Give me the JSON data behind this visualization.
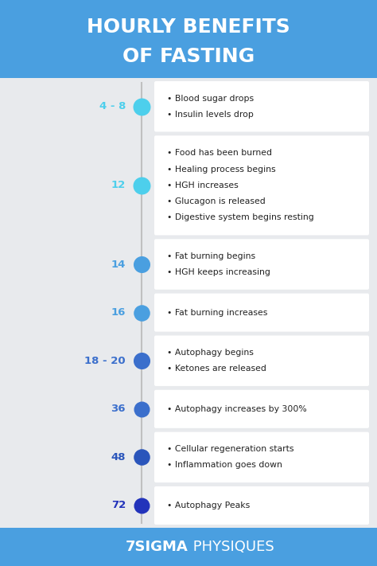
{
  "title_line1": "HOURLY BENEFITS",
  "title_line2": "OF FASTING",
  "title_bg": "#4A9FE0",
  "title_text_color": "#FFFFFF",
  "bg_color": "#E8EAED",
  "footer_text_bold": "7SIGMA",
  "footer_text_normal": " PHYSIQUES",
  "footer_bg": "#4A9FE0",
  "footer_text_color": "#FFFFFF",
  "line_color": "#C0C0C0",
  "card_color": "#FFFFFF",
  "stages": [
    {
      "label": "4 - 8",
      "label_color": "#4DCFEC",
      "dot_color": "#4DCFEC",
      "points": [
        "Blood sugar drops",
        "Insulin levels drop"
      ]
    },
    {
      "label": "12",
      "label_color": "#4DCFEC",
      "dot_color": "#4DCFEC",
      "points": [
        "Food has been burned",
        "Healing process begins",
        "HGH increases",
        "Glucagon is released",
        "Digestive system begins resting"
      ]
    },
    {
      "label": "14",
      "label_color": "#4A9FE0",
      "dot_color": "#4A9FE0",
      "points": [
        "Fat burning begins",
        "HGH keeps increasing"
      ]
    },
    {
      "label": "16",
      "label_color": "#4A9FE0",
      "dot_color": "#4A9FE0",
      "points": [
        "Fat burning increases"
      ]
    },
    {
      "label": "18 - 20",
      "label_color": "#3B6FCC",
      "dot_color": "#3B6FCC",
      "points": [
        "Autophagy begins",
        "Ketones are released"
      ]
    },
    {
      "label": "36",
      "label_color": "#3B6FCC",
      "dot_color": "#3B6FCC",
      "points": [
        "Autophagy increases by 300%"
      ]
    },
    {
      "label": "48",
      "label_color": "#2A55BB",
      "dot_color": "#2A55BB",
      "points": [
        "Cellular regeneration starts",
        "Inflammation goes down"
      ]
    },
    {
      "label": "72",
      "label_color": "#2233BB",
      "dot_color": "#2233BB",
      "points": [
        "Autophagy Peaks"
      ]
    }
  ]
}
